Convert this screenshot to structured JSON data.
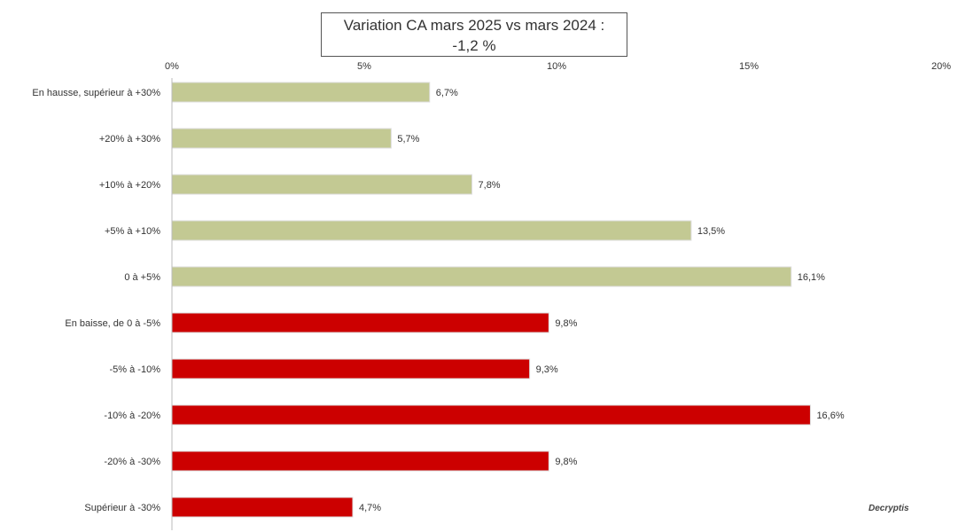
{
  "chart_data": {
    "type": "bar",
    "orientation": "horizontal",
    "title": "Variation CA mars 2025 vs mars 2024 :",
    "subtitle": "-1,2 %",
    "categories": [
      "En hausse, supérieur à +30%",
      "+20% à +30%",
      "+10% à +20%",
      "+5% à +10%",
      "0 à +5%",
      "En baisse, de 0 à -5%",
      "-5% à -10%",
      "-10% à -20%",
      "-20% à -30%",
      "Supérieur à -30%"
    ],
    "values": [
      6.7,
      5.7,
      7.8,
      13.5,
      16.1,
      9.8,
      9.3,
      16.6,
      9.8,
      4.7
    ],
    "data_labels": [
      "6,7%",
      "5,7%",
      "7,8%",
      "13,5%",
      "16,1%",
      "9,8%",
      "9,3%",
      "16,6%",
      "9,8%",
      "4,7%"
    ],
    "x_ticks": [
      "0%",
      "5%",
      "10%",
      "15%",
      "20%"
    ],
    "xlim": [
      0,
      20
    ],
    "grid": false,
    "legend": "none",
    "colors": [
      "#c3c993",
      "#c3c993",
      "#c3c993",
      "#c3c993",
      "#c3c993",
      "#cc0000",
      "#cc0000",
      "#cc0000",
      "#cc0000",
      "#cc0000"
    ],
    "watermark": "Decryptis"
  }
}
